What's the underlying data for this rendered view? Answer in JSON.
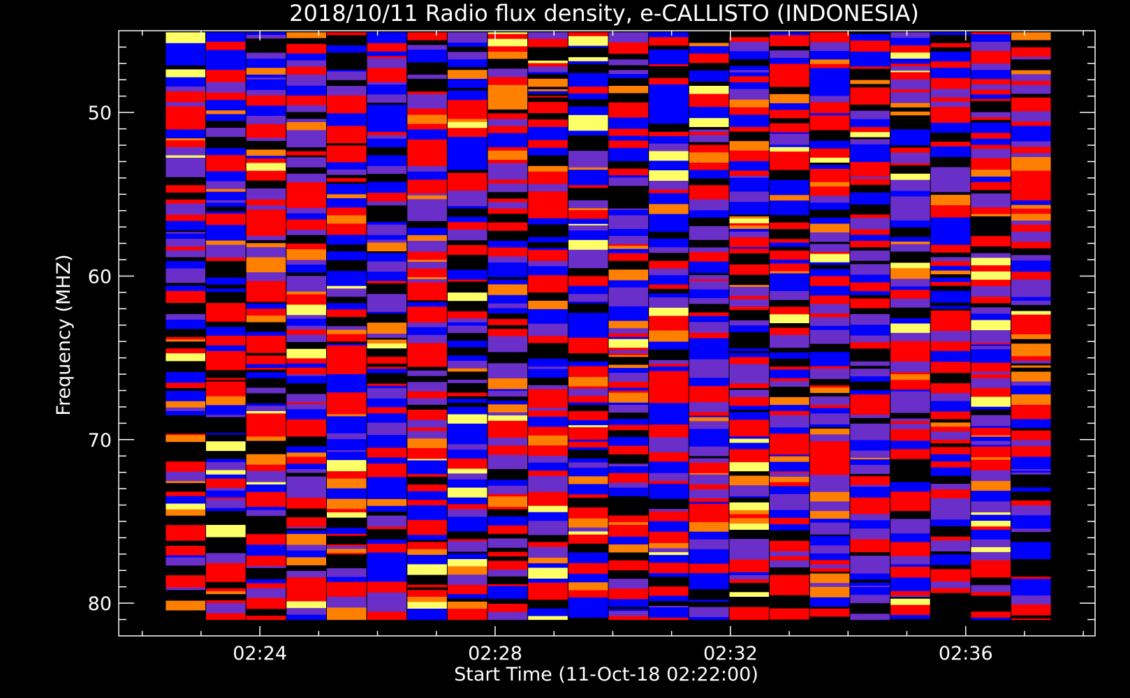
{
  "chart_data": {
    "type": "heatmap",
    "title": "2018/10/11  Radio flux density, e-CALLISTO (INDONESIA)",
    "xlabel": "Start Time (11-Oct-18 02:22:00)",
    "ylabel": "Frequency (MHZ)",
    "x_tick_labels": [
      "02:24",
      "02:28",
      "02:32",
      "02:36"
    ],
    "x_tick_minutes": [
      2,
      6,
      10,
      14
    ],
    "x_range_minutes": [
      -0.4,
      16.2
    ],
    "data_range_minutes": [
      0.4,
      15.46
    ],
    "y_tick_labels": [
      "50",
      "60",
      "70",
      "80"
    ],
    "y_tick_values": [
      50,
      60,
      70,
      80
    ],
    "y_range": [
      45,
      82
    ],
    "data_range_mhz": [
      45.1,
      81.0
    ],
    "y_inverted": true,
    "grid": false,
    "colormap": [
      "#000000",
      "#0000ff",
      "#ff0000",
      "#ff8000",
      "#ffff66"
    ],
    "frame_color": "#ffffff"
  }
}
